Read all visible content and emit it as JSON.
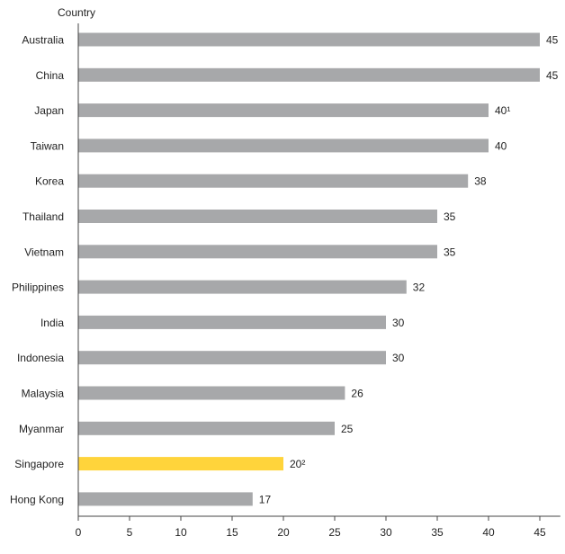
{
  "chart_data": {
    "type": "bar",
    "orientation": "horizontal",
    "ylabel": "Country",
    "categories": [
      "Australia",
      "China",
      "Japan",
      "Taiwan",
      "Korea",
      "Thailand",
      "Vietnam",
      "Philippines",
      "India",
      "Indonesia",
      "Malaysia",
      "Myanmar",
      "Singapore",
      "Hong Kong"
    ],
    "values": [
      45,
      45,
      40,
      40,
      38,
      35,
      35,
      32,
      30,
      30,
      26,
      25,
      20,
      17
    ],
    "value_labels": [
      "45",
      "45",
      "40¹",
      "40",
      "38",
      "35",
      "35",
      "32",
      "30",
      "30",
      "26",
      "25",
      "20²",
      "17"
    ],
    "bar_colors": [
      "#a7a8aa",
      "#a7a8aa",
      "#a7a8aa",
      "#a7a8aa",
      "#a7a8aa",
      "#a7a8aa",
      "#a7a8aa",
      "#a7a8aa",
      "#a7a8aa",
      "#a7a8aa",
      "#a7a8aa",
      "#a7a8aa",
      "#ffd43b",
      "#a7a8aa"
    ],
    "xlim": [
      0,
      47
    ],
    "xticks": [
      0,
      5,
      10,
      15,
      20,
      25,
      30,
      35,
      40,
      45
    ],
    "grid": false,
    "legend": "none"
  }
}
